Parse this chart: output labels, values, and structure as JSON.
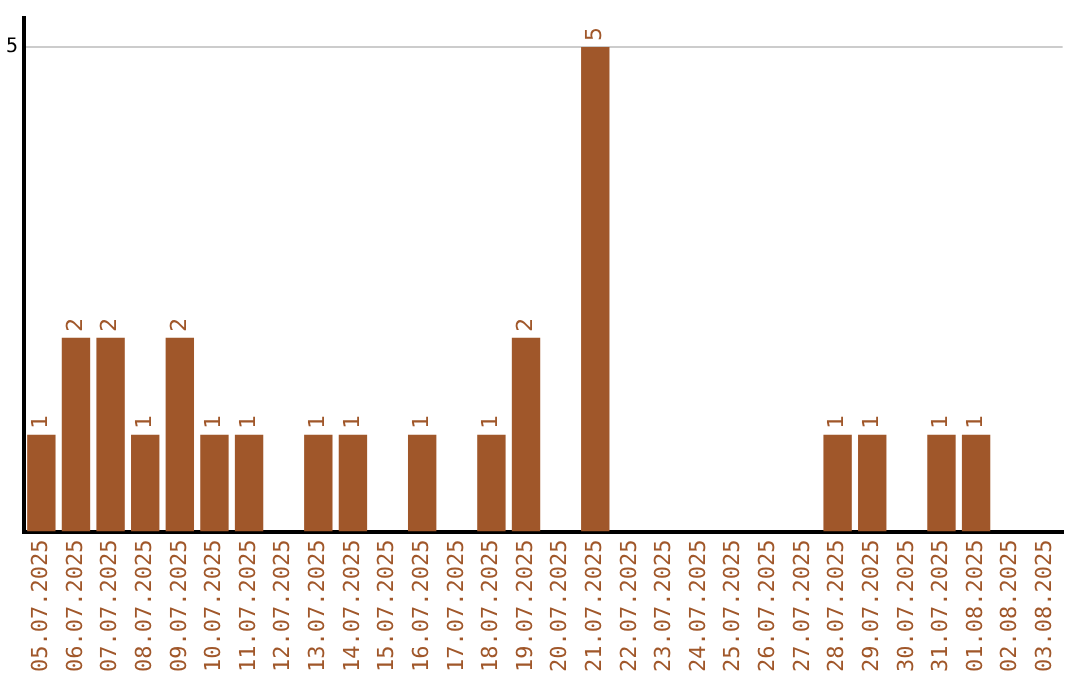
{
  "chart_data": {
    "type": "bar",
    "categories": [
      "05.07.2025",
      "06.07.2025",
      "07.07.2025",
      "08.07.2025",
      "09.07.2025",
      "10.07.2025",
      "11.07.2025",
      "12.07.2025",
      "13.07.2025",
      "14.07.2025",
      "15.07.2025",
      "16.07.2025",
      "17.07.2025",
      "18.07.2025",
      "19.07.2025",
      "20.07.2025",
      "21.07.2025",
      "22.07.2025",
      "23.07.2025",
      "24.07.2025",
      "25.07.2025",
      "26.07.2025",
      "27.07.2025",
      "28.07.2025",
      "29.07.2025",
      "30.07.2025",
      "31.07.2025",
      "01.08.2025",
      "02.08.2025",
      "03.08.2025"
    ],
    "values": [
      1,
      2,
      2,
      1,
      2,
      1,
      1,
      0,
      1,
      1,
      0,
      1,
      0,
      1,
      2,
      0,
      5,
      0,
      0,
      0,
      0,
      0,
      0,
      1,
      1,
      0,
      1,
      1,
      0,
      0
    ],
    "value_labels": [
      "1",
      "2",
      "2",
      "1",
      "2",
      "1",
      "1",
      null,
      "1",
      "1",
      null,
      "1",
      null,
      "1",
      "2",
      null,
      "5",
      null,
      null,
      null,
      null,
      null,
      null,
      "1",
      "1",
      null,
      "1",
      "1",
      null,
      null
    ],
    "color": "#a0572a",
    "ylim": [
      0,
      5.3
    ],
    "yticks": [
      5
    ],
    "grid": "y",
    "legend": false
  }
}
